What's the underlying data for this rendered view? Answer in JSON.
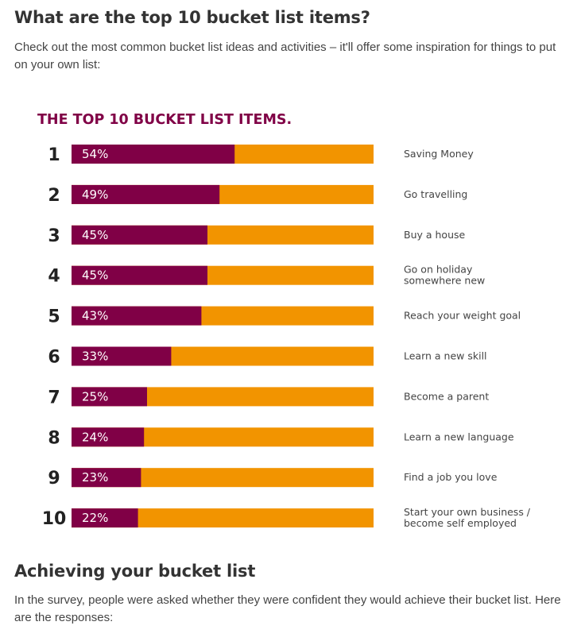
{
  "section1": {
    "heading": "What are the top 10 bucket list items?",
    "intro": "Check out the most common bucket list ideas and activities – it'll offer some inspiration for things to put on your own list:"
  },
  "section2": {
    "heading": "Achieving your bucket list",
    "intro": "In the survey, people were asked whether they were confident they would achieve their bucket list. Here are the responses:"
  },
  "colors": {
    "value_bar": "#800046",
    "track_bar": "#f29400",
    "chart_title": "#800046"
  },
  "chart_data": {
    "type": "bar",
    "orientation": "horizontal",
    "title": "THE TOP 10 BUCKET LIST ITEMS.",
    "xlim": [
      0,
      100
    ],
    "ranks": [
      "1",
      "2",
      "3",
      "4",
      "5",
      "6",
      "7",
      "8",
      "9",
      "10"
    ],
    "value_labels": [
      "54%",
      "49%",
      "45%",
      "45%",
      "43%",
      "33%",
      "25%",
      "24%",
      "23%",
      "22%"
    ],
    "values": [
      54,
      49,
      45,
      45,
      43,
      33,
      25,
      24,
      23,
      22
    ],
    "categories": [
      [
        "Saving Money"
      ],
      [
        "Go travelling"
      ],
      [
        "Buy a house"
      ],
      [
        "Go on holiday",
        "somewhere new"
      ],
      [
        "Reach your weight goal"
      ],
      [
        "Learn a new skill"
      ],
      [
        "Become a parent"
      ],
      [
        "Learn a new language"
      ],
      [
        "Find a job you love"
      ],
      [
        "Start your own business /",
        "become self employed"
      ]
    ]
  }
}
